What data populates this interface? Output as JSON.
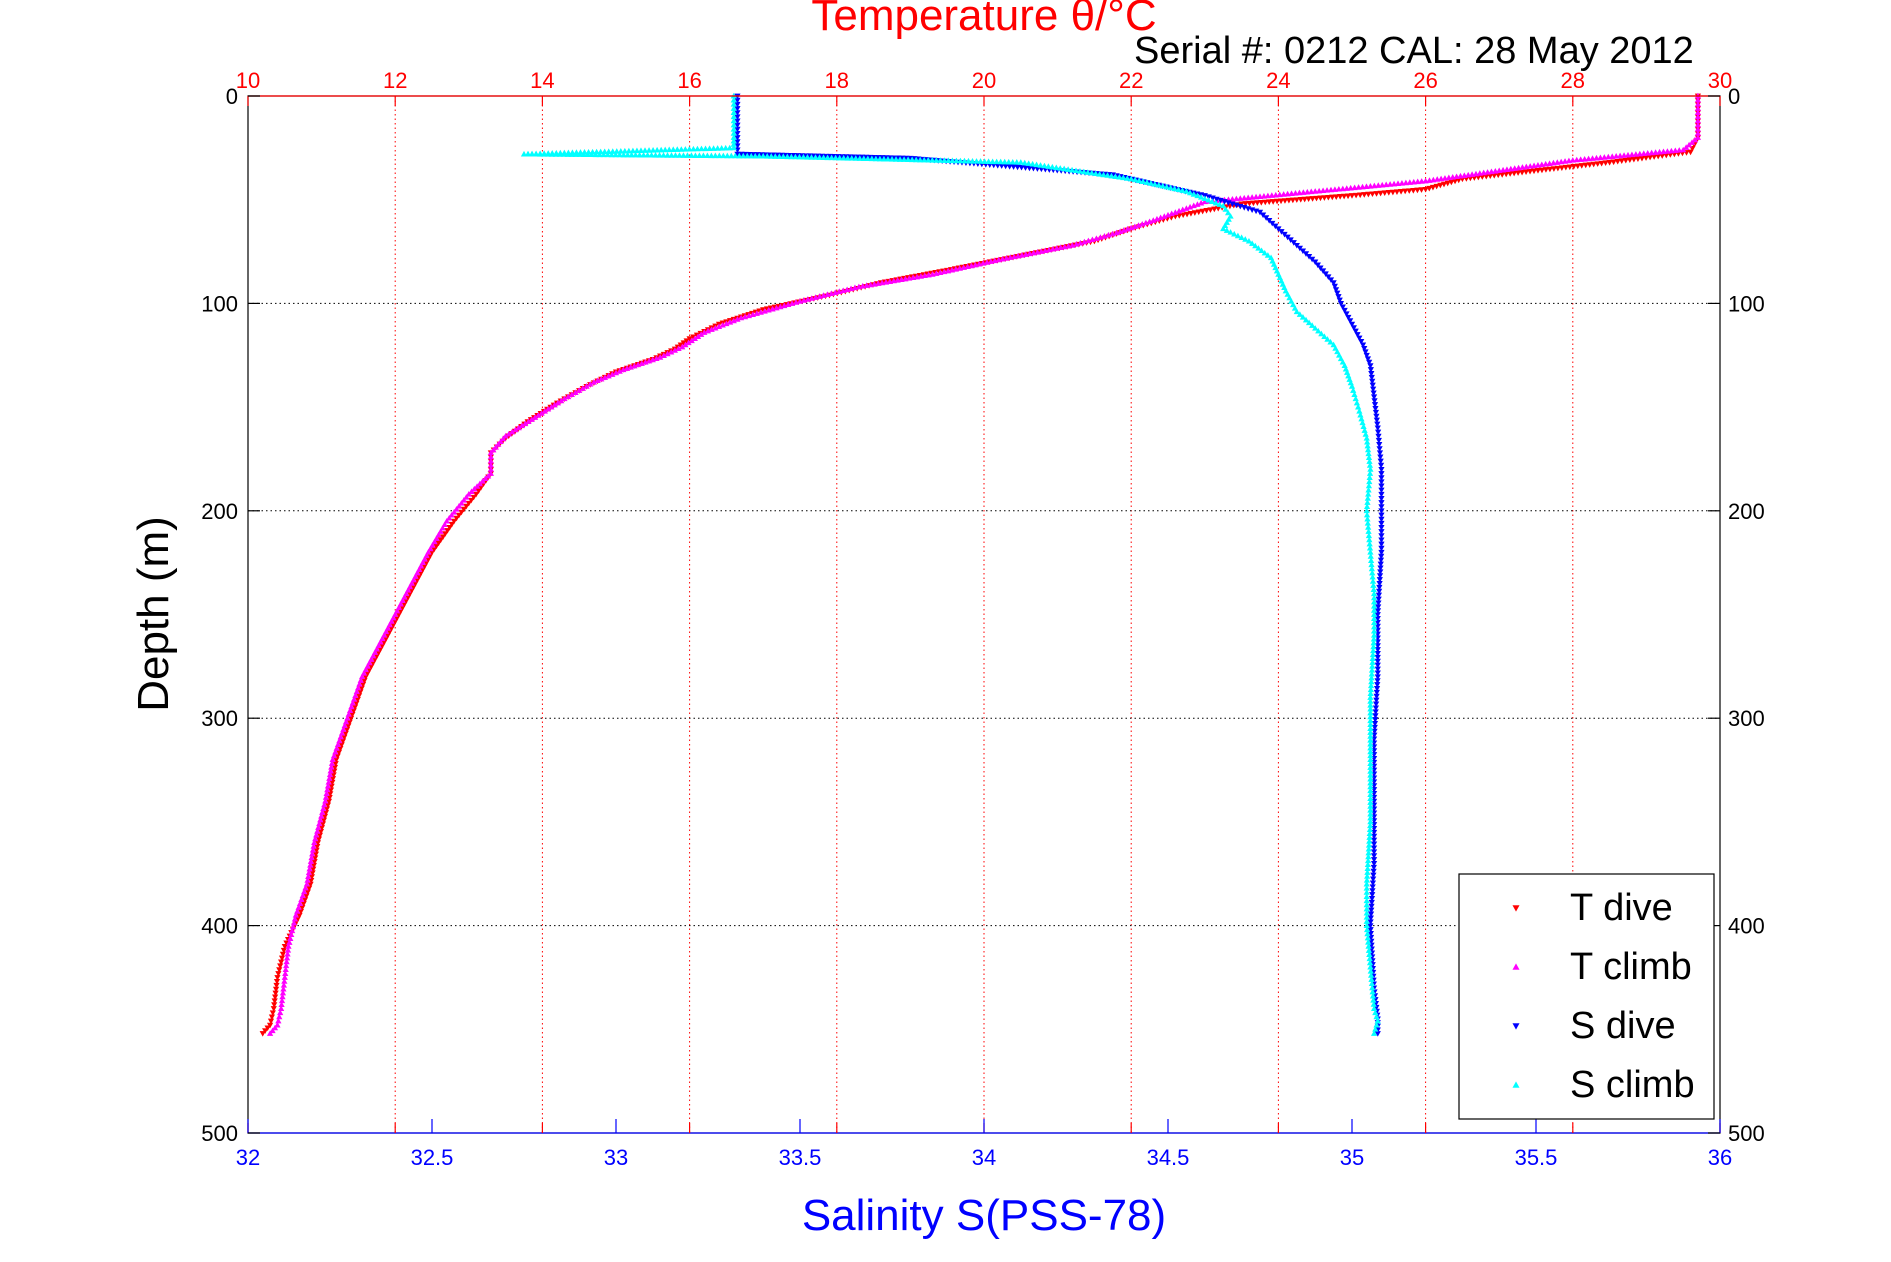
{
  "chart_data": {
    "type": "scatter",
    "title": "Temperature θ/°C",
    "subtitle": "Serial #: 0212  CAL: 28 May 2012",
    "ylabel": "Depth (m)",
    "xlabel_bottom": "Salinity S(PSS-78)",
    "xlabel_top": "Temperature θ/°C",
    "ylim": [
      0,
      500
    ],
    "y_reversed": true,
    "yticks": [
      "0",
      "100",
      "200",
      "300",
      "400",
      "500"
    ],
    "x_bottom_lim": [
      32,
      36
    ],
    "x_bottom_ticks": [
      "32",
      "32.5",
      "33",
      "33.5",
      "34",
      "34.5",
      "35",
      "35.5",
      "36"
    ],
    "x_top_lim": [
      10,
      30
    ],
    "x_top_ticks": [
      "10",
      "12",
      "14",
      "16",
      "18",
      "20",
      "22",
      "24",
      "26",
      "28",
      "30"
    ],
    "grid": "dotted",
    "legend_position": "bottom-right",
    "colors": {
      "temperature_axis": "#ff0000",
      "salinity_axis": "#0000ff",
      "t_dive": "#ff0000",
      "t_climb": "#ff00ff",
      "s_dive": "#0000ff",
      "s_climb": "#00ffff"
    },
    "series": [
      {
        "name": "T dive",
        "axis": "top",
        "marker": "triangle-down",
        "color": "#ff0000",
        "points": [
          [
            29.7,
            0
          ],
          [
            29.7,
            10
          ],
          [
            29.7,
            20
          ],
          [
            29.6,
            27
          ],
          [
            28.5,
            32
          ],
          [
            26.5,
            40
          ],
          [
            26,
            45
          ],
          [
            25,
            48
          ],
          [
            23.5,
            52
          ],
          [
            22.6,
            58
          ],
          [
            22,
            64
          ],
          [
            21.5,
            70
          ],
          [
            20.5,
            77
          ],
          [
            19.5,
            84
          ],
          [
            18.6,
            90
          ],
          [
            17.9,
            96
          ],
          [
            17,
            103
          ],
          [
            16.4,
            110
          ],
          [
            16,
            117
          ],
          [
            15.8,
            122
          ],
          [
            15.5,
            127
          ],
          [
            15,
            133
          ],
          [
            14.6,
            140
          ],
          [
            14.2,
            148
          ],
          [
            13.8,
            157
          ],
          [
            13.5,
            165
          ],
          [
            13.3,
            172
          ],
          [
            13.3,
            182
          ],
          [
            13.1,
            192
          ],
          [
            12.8,
            205
          ],
          [
            12.5,
            220
          ],
          [
            12.2,
            240
          ],
          [
            11.9,
            260
          ],
          [
            11.6,
            280
          ],
          [
            11.4,
            300
          ],
          [
            11.2,
            320
          ],
          [
            11.1,
            340
          ],
          [
            10.95,
            360
          ],
          [
            10.85,
            380
          ],
          [
            10.7,
            395
          ],
          [
            10.5,
            410
          ],
          [
            10.4,
            425
          ],
          [
            10.35,
            440
          ],
          [
            10.3,
            448
          ],
          [
            10.2,
            452
          ]
        ]
      },
      {
        "name": "T climb",
        "axis": "top",
        "marker": "triangle-up",
        "color": "#ff00ff",
        "points": [
          [
            29.7,
            0
          ],
          [
            29.7,
            10
          ],
          [
            29.7,
            20
          ],
          [
            29.5,
            26
          ],
          [
            28,
            31
          ],
          [
            27,
            36
          ],
          [
            26,
            41
          ],
          [
            24.5,
            46
          ],
          [
            23,
            51
          ],
          [
            22.3,
            60
          ],
          [
            21.8,
            66
          ],
          [
            21.2,
            72
          ],
          [
            20.2,
            79
          ],
          [
            19.3,
            86
          ],
          [
            18.3,
            92
          ],
          [
            17.5,
            99
          ],
          [
            16.7,
            107
          ],
          [
            16.2,
            114
          ],
          [
            15.9,
            121
          ],
          [
            15.6,
            126
          ],
          [
            15.1,
            132
          ],
          [
            14.7,
            138
          ],
          [
            14.3,
            146
          ],
          [
            13.9,
            155
          ],
          [
            13.5,
            164
          ],
          [
            13.3,
            172
          ],
          [
            13.3,
            182
          ],
          [
            13.0,
            192
          ],
          [
            12.7,
            205
          ],
          [
            12.45,
            220
          ],
          [
            12.15,
            240
          ],
          [
            11.85,
            260
          ],
          [
            11.55,
            280
          ],
          [
            11.35,
            300
          ],
          [
            11.15,
            320
          ],
          [
            11.05,
            340
          ],
          [
            10.9,
            360
          ],
          [
            10.8,
            380
          ],
          [
            10.65,
            395
          ],
          [
            10.55,
            410
          ],
          [
            10.5,
            425
          ],
          [
            10.45,
            440
          ],
          [
            10.4,
            448
          ],
          [
            10.3,
            452
          ]
        ]
      },
      {
        "name": "S dive",
        "axis": "bottom",
        "marker": "triangle-down",
        "color": "#0000ff",
        "points": [
          [
            33.33,
            0
          ],
          [
            33.33,
            8
          ],
          [
            33.33,
            16
          ],
          [
            33.33,
            24
          ],
          [
            33.33,
            28
          ],
          [
            33.8,
            30
          ],
          [
            34.35,
            38
          ],
          [
            34.6,
            48
          ],
          [
            34.75,
            56
          ],
          [
            34.8,
            64
          ],
          [
            34.85,
            72
          ],
          [
            34.9,
            80
          ],
          [
            34.95,
            90
          ],
          [
            34.97,
            100
          ],
          [
            35.0,
            110
          ],
          [
            35.03,
            120
          ],
          [
            35.05,
            130
          ],
          [
            35.06,
            145
          ],
          [
            35.07,
            160
          ],
          [
            35.08,
            180
          ],
          [
            35.08,
            200
          ],
          [
            35.08,
            220
          ],
          [
            35.07,
            250
          ],
          [
            35.07,
            280
          ],
          [
            35.06,
            310
          ],
          [
            35.06,
            340
          ],
          [
            35.06,
            370
          ],
          [
            35.05,
            400
          ],
          [
            35.06,
            430
          ],
          [
            35.07,
            445
          ],
          [
            35.07,
            452
          ]
        ]
      },
      {
        "name": "S climb",
        "axis": "bottom",
        "marker": "triangle-up",
        "color": "#00ffff",
        "points": [
          [
            33.32,
            0
          ],
          [
            33.32,
            10
          ],
          [
            33.32,
            20
          ],
          [
            33.32,
            25
          ],
          [
            32.75,
            28
          ],
          [
            33.4,
            29
          ],
          [
            34.1,
            32
          ],
          [
            34.25,
            36
          ],
          [
            34.4,
            40
          ],
          [
            34.55,
            46
          ],
          [
            34.65,
            53
          ],
          [
            34.67,
            58
          ],
          [
            34.65,
            64
          ],
          [
            34.72,
            70
          ],
          [
            34.78,
            78
          ],
          [
            34.8,
            86
          ],
          [
            34.82,
            94
          ],
          [
            34.85,
            104
          ],
          [
            34.9,
            112
          ],
          [
            34.95,
            120
          ],
          [
            34.98,
            130
          ],
          [
            35.0,
            140
          ],
          [
            35.02,
            152
          ],
          [
            35.04,
            165
          ],
          [
            35.05,
            180
          ],
          [
            35.04,
            200
          ],
          [
            35.05,
            220
          ],
          [
            35.06,
            240
          ],
          [
            35.06,
            260
          ],
          [
            35.05,
            290
          ],
          [
            35.05,
            320
          ],
          [
            35.05,
            350
          ],
          [
            35.04,
            380
          ],
          [
            35.04,
            400
          ],
          [
            35.05,
            420
          ],
          [
            35.06,
            440
          ],
          [
            35.07,
            446
          ],
          [
            35.06,
            452
          ]
        ]
      }
    ]
  }
}
